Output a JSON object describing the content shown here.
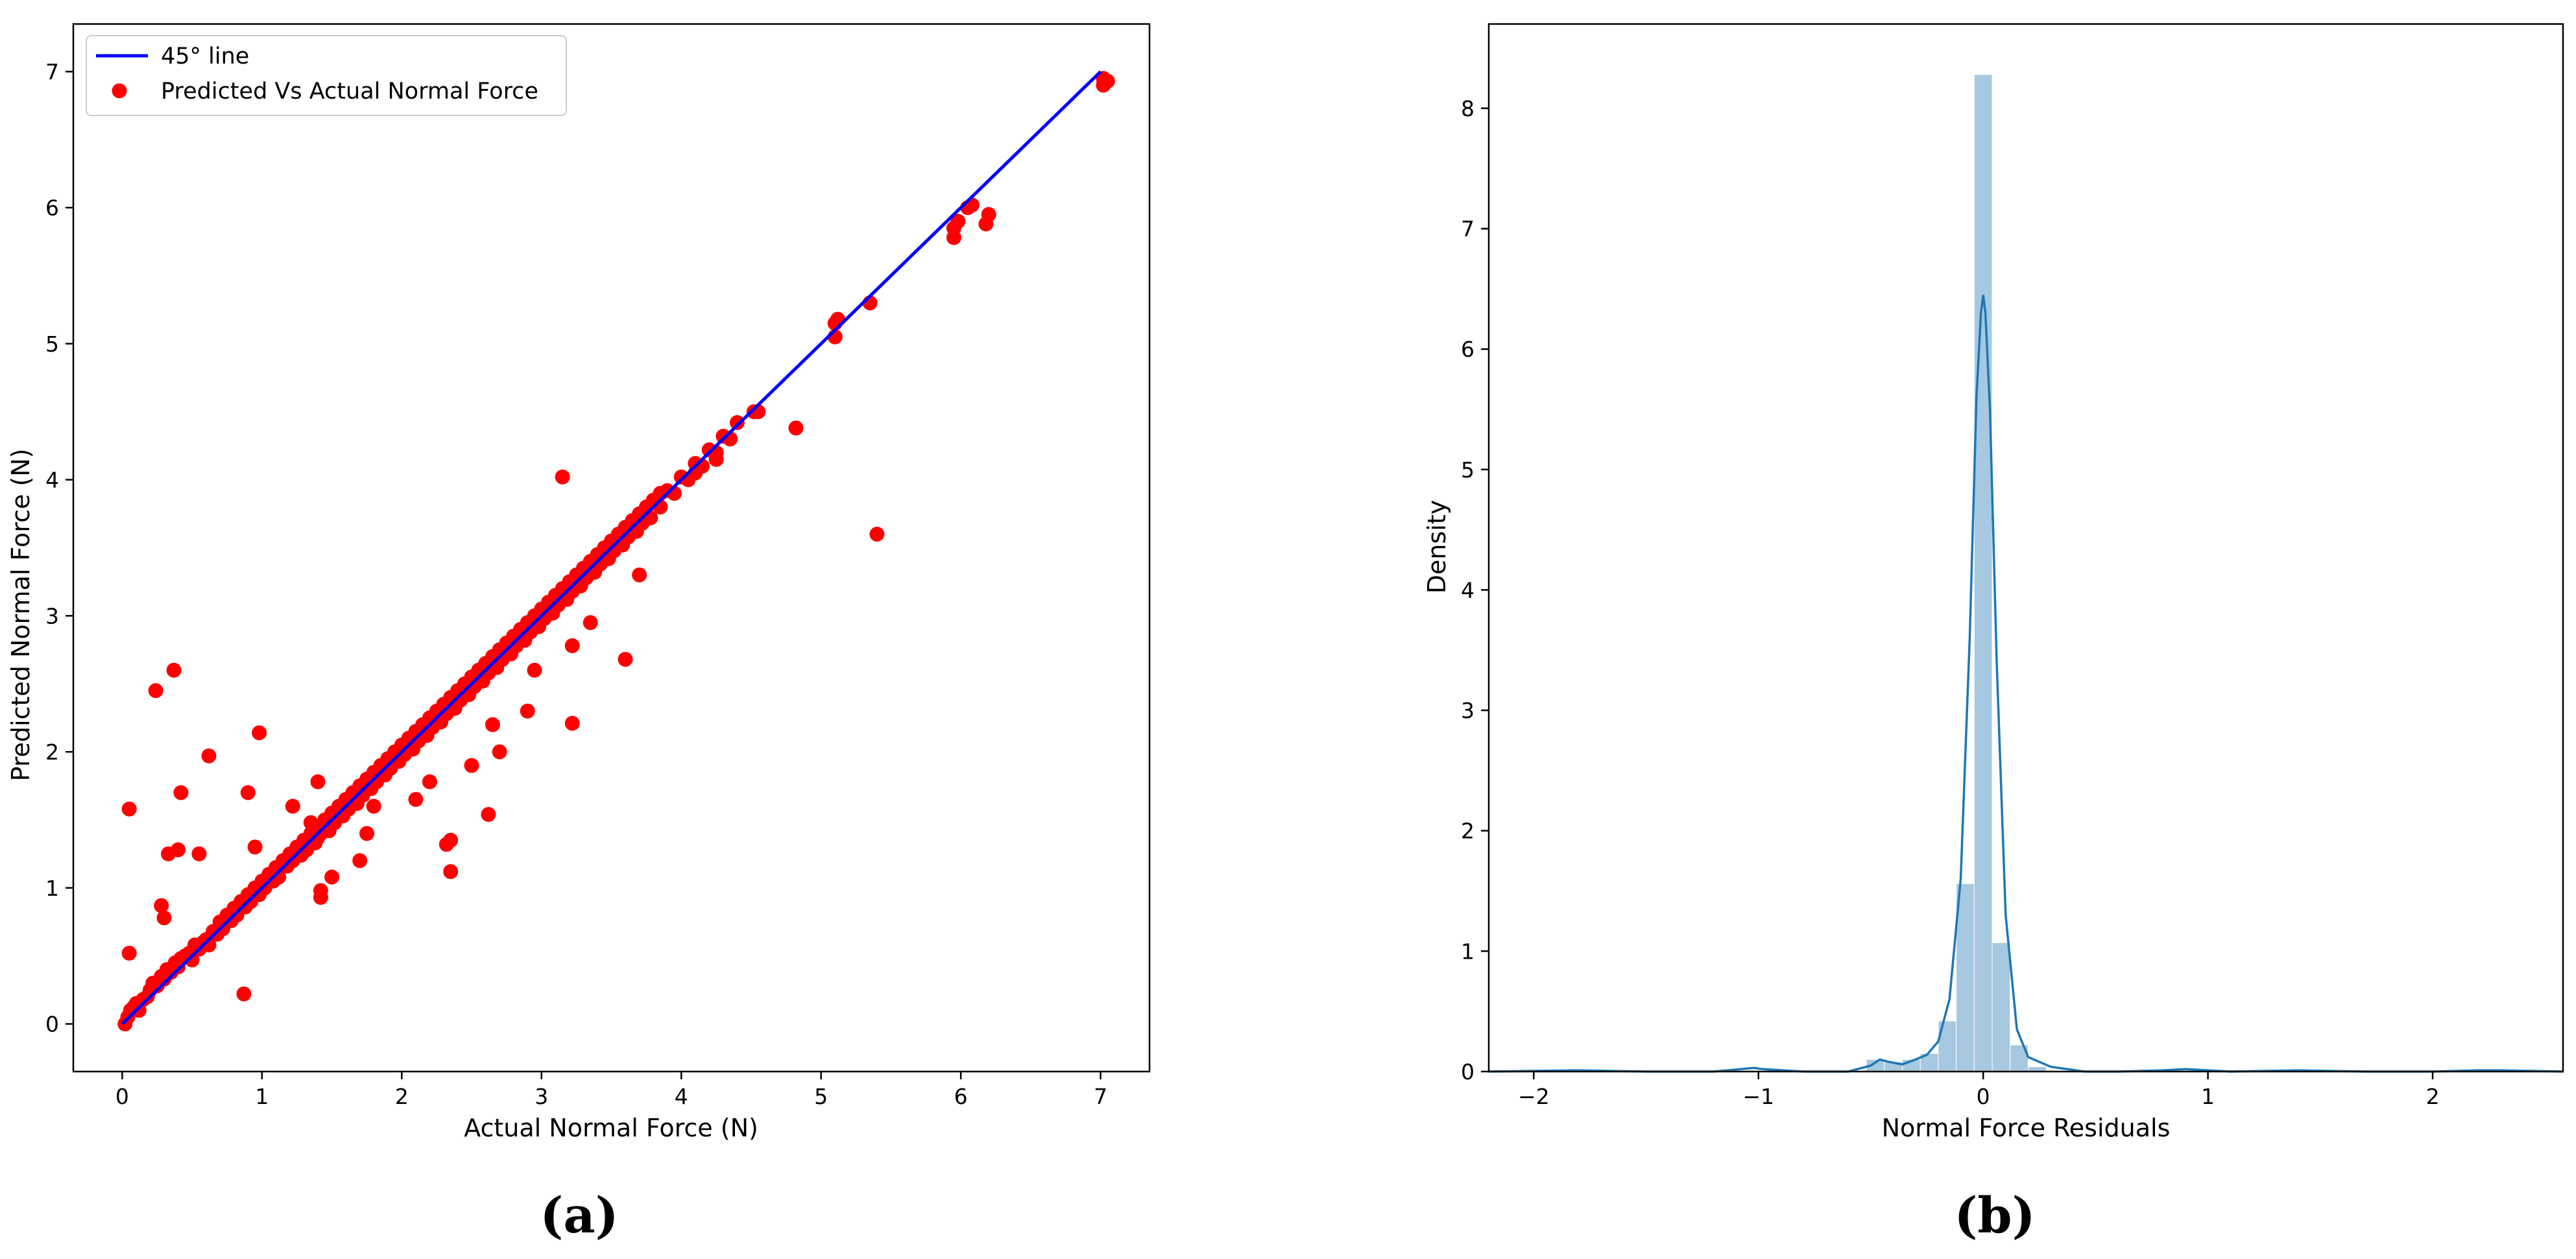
{
  "figure": {
    "caption_a": "(a)",
    "caption_b": "(b)"
  },
  "chart_data": [
    {
      "type": "scatter",
      "panel": "a",
      "xlabel": "Actual Normal Force (N)",
      "ylabel": "Predicted Normal Force (N)",
      "xlim": [
        -0.35,
        7.35
      ],
      "ylim": [
        -0.35,
        7.35
      ],
      "xticks": [
        0,
        1,
        2,
        3,
        4,
        5,
        6,
        7
      ],
      "yticks": [
        0,
        1,
        2,
        3,
        4,
        5,
        6,
        7
      ],
      "grid": false,
      "legend_position": "top-left",
      "colors": {
        "line": "#0000ff",
        "points": "#ff0000",
        "axes": "#000000"
      },
      "line_series": {
        "name": "45° line",
        "x": [
          0,
          7
        ],
        "y": [
          0,
          7
        ]
      },
      "scatter_series": {
        "name": "Predicted Vs Actual Normal Force",
        "points": [
          [
            0.02,
            0.0
          ],
          [
            0.04,
            0.05
          ],
          [
            0.06,
            0.1
          ],
          [
            0.08,
            0.12
          ],
          [
            0.1,
            0.15
          ],
          [
            0.12,
            0.1
          ],
          [
            0.15,
            0.18
          ],
          [
            0.18,
            0.2
          ],
          [
            0.2,
            0.25
          ],
          [
            0.22,
            0.3
          ],
          [
            0.25,
            0.28
          ],
          [
            0.28,
            0.35
          ],
          [
            0.3,
            0.33
          ],
          [
            0.32,
            0.4
          ],
          [
            0.35,
            0.38
          ],
          [
            0.38,
            0.45
          ],
          [
            0.4,
            0.42
          ],
          [
            0.42,
            0.48
          ],
          [
            0.45,
            0.5
          ],
          [
            0.48,
            0.52
          ],
          [
            0.5,
            0.47
          ],
          [
            0.52,
            0.58
          ],
          [
            0.55,
            0.55
          ],
          [
            0.58,
            0.6
          ],
          [
            0.6,
            0.62
          ],
          [
            0.62,
            0.58
          ],
          [
            0.65,
            0.68
          ],
          [
            0.68,
            0.66
          ],
          [
            0.7,
            0.75
          ],
          [
            0.72,
            0.7
          ],
          [
            0.75,
            0.8
          ],
          [
            0.78,
            0.76
          ],
          [
            0.8,
            0.85
          ],
          [
            0.82,
            0.8
          ],
          [
            0.85,
            0.9
          ],
          [
            0.88,
            0.86
          ],
          [
            0.9,
            0.95
          ],
          [
            0.92,
            0.9
          ],
          [
            0.95,
            1.0
          ],
          [
            0.98,
            0.95
          ],
          [
            1.0,
            1.05
          ],
          [
            1.02,
            1.0
          ],
          [
            1.05,
            1.1
          ],
          [
            1.08,
            1.05
          ],
          [
            1.1,
            1.15
          ],
          [
            1.12,
            1.08
          ],
          [
            1.15,
            1.2
          ],
          [
            1.18,
            1.16
          ],
          [
            1.2,
            1.25
          ],
          [
            1.22,
            1.2
          ],
          [
            1.25,
            1.3
          ],
          [
            1.28,
            1.24
          ],
          [
            1.3,
            1.35
          ],
          [
            1.32,
            1.28
          ],
          [
            1.35,
            1.4
          ],
          [
            1.38,
            1.33
          ],
          [
            1.4,
            1.45
          ],
          [
            1.42,
            1.4
          ],
          [
            1.45,
            1.5
          ],
          [
            1.48,
            1.42
          ],
          [
            1.5,
            1.55
          ],
          [
            1.52,
            1.48
          ],
          [
            1.55,
            1.6
          ],
          [
            1.58,
            1.53
          ],
          [
            1.6,
            1.65
          ],
          [
            1.62,
            1.58
          ],
          [
            1.65,
            1.7
          ],
          [
            1.68,
            1.62
          ],
          [
            1.7,
            1.75
          ],
          [
            1.72,
            1.68
          ],
          [
            1.75,
            1.8
          ],
          [
            1.78,
            1.73
          ],
          [
            1.8,
            1.85
          ],
          [
            1.82,
            1.78
          ],
          [
            1.85,
            1.9
          ],
          [
            1.88,
            1.83
          ],
          [
            1.9,
            1.95
          ],
          [
            1.92,
            1.88
          ],
          [
            1.95,
            2.0
          ],
          [
            1.98,
            1.93
          ],
          [
            2.0,
            2.05
          ],
          [
            2.02,
            1.98
          ],
          [
            2.05,
            2.1
          ],
          [
            2.08,
            2.02
          ],
          [
            2.1,
            2.15
          ],
          [
            2.12,
            2.08
          ],
          [
            2.15,
            2.2
          ],
          [
            2.18,
            2.12
          ],
          [
            2.2,
            2.25
          ],
          [
            2.22,
            2.18
          ],
          [
            2.25,
            2.3
          ],
          [
            2.28,
            2.22
          ],
          [
            2.3,
            2.35
          ],
          [
            2.32,
            2.28
          ],
          [
            2.35,
            2.4
          ],
          [
            2.38,
            2.32
          ],
          [
            2.4,
            2.45
          ],
          [
            2.42,
            2.38
          ],
          [
            2.45,
            2.5
          ],
          [
            2.48,
            2.42
          ],
          [
            2.5,
            2.55
          ],
          [
            2.52,
            2.48
          ],
          [
            2.55,
            2.6
          ],
          [
            2.58,
            2.52
          ],
          [
            2.6,
            2.65
          ],
          [
            2.62,
            2.58
          ],
          [
            2.65,
            2.7
          ],
          [
            2.68,
            2.62
          ],
          [
            2.7,
            2.75
          ],
          [
            2.72,
            2.68
          ],
          [
            2.75,
            2.8
          ],
          [
            2.78,
            2.72
          ],
          [
            2.8,
            2.85
          ],
          [
            2.82,
            2.78
          ],
          [
            2.85,
            2.9
          ],
          [
            2.88,
            2.82
          ],
          [
            2.9,
            2.95
          ],
          [
            2.92,
            2.88
          ],
          [
            2.95,
            3.0
          ],
          [
            2.98,
            2.92
          ],
          [
            3.0,
            3.05
          ],
          [
            3.02,
            2.98
          ],
          [
            3.05,
            3.1
          ],
          [
            3.08,
            3.02
          ],
          [
            3.1,
            3.15
          ],
          [
            3.12,
            3.08
          ],
          [
            3.15,
            3.2
          ],
          [
            3.18,
            3.12
          ],
          [
            3.2,
            3.25
          ],
          [
            3.22,
            3.18
          ],
          [
            3.25,
            3.3
          ],
          [
            3.28,
            3.22
          ],
          [
            3.3,
            3.35
          ],
          [
            3.32,
            3.28
          ],
          [
            3.35,
            3.4
          ],
          [
            3.38,
            3.32
          ],
          [
            3.4,
            3.45
          ],
          [
            3.42,
            3.38
          ],
          [
            3.45,
            3.5
          ],
          [
            3.48,
            3.42
          ],
          [
            3.5,
            3.55
          ],
          [
            3.52,
            3.48
          ],
          [
            3.55,
            3.6
          ],
          [
            3.58,
            3.52
          ],
          [
            3.6,
            3.65
          ],
          [
            3.62,
            3.58
          ],
          [
            3.65,
            3.7
          ],
          [
            3.68,
            3.62
          ],
          [
            3.7,
            3.75
          ],
          [
            3.72,
            3.68
          ],
          [
            3.75,
            3.8
          ],
          [
            3.78,
            3.72
          ],
          [
            3.8,
            3.85
          ],
          [
            3.85,
            3.8
          ],
          [
            3.9,
            3.92
          ],
          [
            3.95,
            3.9
          ],
          [
            4.0,
            4.02
          ],
          [
            4.05,
            4.0
          ],
          [
            4.1,
            4.12
          ],
          [
            4.15,
            4.1
          ],
          [
            4.2,
            4.22
          ],
          [
            4.25,
            4.2
          ],
          [
            4.3,
            4.32
          ],
          [
            4.35,
            4.3
          ],
          [
            4.4,
            4.42
          ],
          [
            4.55,
            4.5
          ],
          [
            0.55,
            1.25
          ],
          [
            0.42,
            1.7
          ],
          [
            0.37,
            2.6
          ],
          [
            0.24,
            2.45
          ],
          [
            0.28,
            0.87
          ],
          [
            0.3,
            0.78
          ],
          [
            0.33,
            1.25
          ],
          [
            0.4,
            1.28
          ],
          [
            0.05,
            1.58
          ],
          [
            0.05,
            0.52
          ],
          [
            0.62,
            1.97
          ],
          [
            0.98,
            2.14
          ],
          [
            0.9,
            1.7
          ],
          [
            0.95,
            1.3
          ],
          [
            0.87,
            0.22
          ],
          [
            1.4,
            1.78
          ],
          [
            1.22,
            1.6
          ],
          [
            1.35,
            1.48
          ],
          [
            1.4,
            1.37
          ],
          [
            1.42,
            0.98
          ],
          [
            1.42,
            0.93
          ],
          [
            1.5,
            1.08
          ],
          [
            1.7,
            1.2
          ],
          [
            1.75,
            1.4
          ],
          [
            1.8,
            1.6
          ],
          [
            2.1,
            1.65
          ],
          [
            2.2,
            1.78
          ],
          [
            2.35,
            1.35
          ],
          [
            2.35,
            1.12
          ],
          [
            2.32,
            1.32
          ],
          [
            2.62,
            1.54
          ],
          [
            2.5,
            1.9
          ],
          [
            2.7,
            2.0
          ],
          [
            2.65,
            2.2
          ],
          [
            2.9,
            2.3
          ],
          [
            2.95,
            2.6
          ],
          [
            3.22,
            2.21
          ],
          [
            3.22,
            2.78
          ],
          [
            3.35,
            2.95
          ],
          [
            3.15,
            4.02
          ],
          [
            3.6,
            2.68
          ],
          [
            3.7,
            3.3
          ],
          [
            3.85,
            3.9
          ],
          [
            4.1,
            4.05
          ],
          [
            4.25,
            4.15
          ],
          [
            4.35,
            4.3
          ],
          [
            4.52,
            4.5
          ],
          [
            4.82,
            4.38
          ],
          [
            5.4,
            3.6
          ],
          [
            5.1,
            5.05
          ],
          [
            5.1,
            5.15
          ],
          [
            5.12,
            5.18
          ],
          [
            5.35,
            5.3
          ],
          [
            5.95,
            5.78
          ],
          [
            5.95,
            5.85
          ],
          [
            5.98,
            5.9
          ],
          [
            6.05,
            6.0
          ],
          [
            6.08,
            6.02
          ],
          [
            6.18,
            5.88
          ],
          [
            6.2,
            5.95
          ],
          [
            7.02,
            6.9
          ],
          [
            7.05,
            6.93
          ],
          [
            7.02,
            6.95
          ]
        ]
      }
    },
    {
      "type": "histogram",
      "panel": "b",
      "xlabel": "Normal Force Residuals",
      "ylabel": "Density",
      "xlim": [
        -2.2,
        2.58
      ],
      "ylim": [
        0,
        8.7
      ],
      "xticks": [
        -2,
        -1,
        0,
        1,
        2
      ],
      "xtick_labels": [
        "−2",
        "−1",
        "0",
        "1",
        "2"
      ],
      "yticks": [
        0,
        1,
        2,
        3,
        4,
        5,
        6,
        7,
        8
      ],
      "grid": false,
      "colors": {
        "bars": "#a6c8e0",
        "kde": "#1f77b4",
        "axes": "#000000"
      },
      "bins": [
        {
          "x0": -0.52,
          "x1": -0.44,
          "density": 0.1
        },
        {
          "x0": -0.44,
          "x1": -0.36,
          "density": 0.08
        },
        {
          "x0": -0.36,
          "x1": -0.28,
          "density": 0.1
        },
        {
          "x0": -0.28,
          "x1": -0.2,
          "density": 0.15
        },
        {
          "x0": -0.2,
          "x1": -0.12,
          "density": 0.42
        },
        {
          "x0": -0.12,
          "x1": -0.04,
          "density": 1.56
        },
        {
          "x0": -0.04,
          "x1": 0.04,
          "density": 8.28
        },
        {
          "x0": 0.04,
          "x1": 0.12,
          "density": 1.07
        },
        {
          "x0": 0.12,
          "x1": 0.2,
          "density": 0.22
        },
        {
          "x0": 0.2,
          "x1": 0.28,
          "density": 0.04
        }
      ],
      "kde": {
        "x": [
          -2.2,
          -1.8,
          -1.5,
          -1.2,
          -1.02,
          -0.98,
          -0.8,
          -0.6,
          -0.5,
          -0.46,
          -0.42,
          -0.36,
          -0.3,
          -0.25,
          -0.2,
          -0.15,
          -0.1,
          -0.06,
          -0.03,
          -0.01,
          0.0,
          0.01,
          0.03,
          0.06,
          0.1,
          0.15,
          0.2,
          0.3,
          0.45,
          0.6,
          0.8,
          0.9,
          1.1,
          1.4,
          1.7,
          2.0,
          2.2,
          2.3,
          2.58
        ],
        "y": [
          0.0,
          0.01,
          0.0,
          0.0,
          0.03,
          0.02,
          0.0,
          0.0,
          0.05,
          0.1,
          0.08,
          0.06,
          0.1,
          0.14,
          0.25,
          0.6,
          1.6,
          3.6,
          5.6,
          6.3,
          6.45,
          6.3,
          5.5,
          3.4,
          1.3,
          0.35,
          0.12,
          0.04,
          0.0,
          0.0,
          0.01,
          0.02,
          0.0,
          0.01,
          0.0,
          0.0,
          0.01,
          0.01,
          0.0
        ]
      }
    }
  ]
}
